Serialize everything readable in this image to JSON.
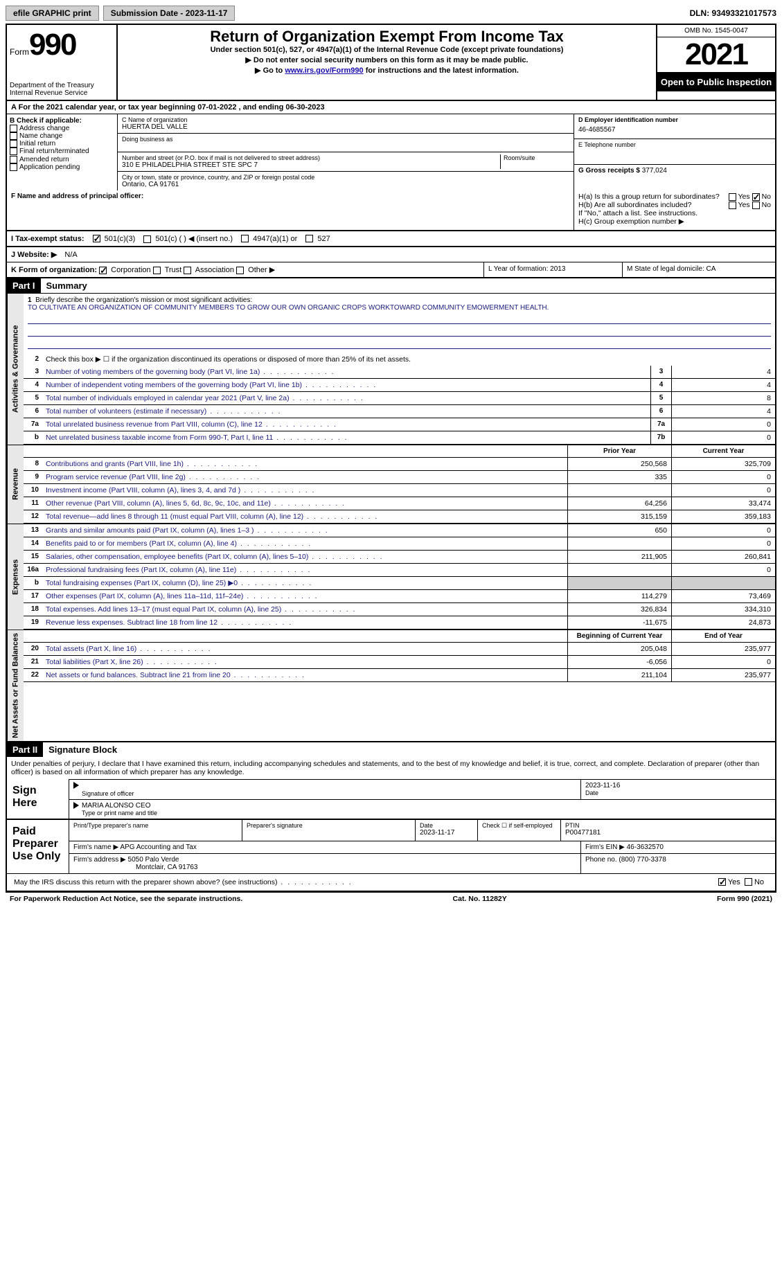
{
  "topbar": {
    "efile": "efile GRAPHIC print",
    "submission_label": "Submission Date - 2023-11-17",
    "dln": "DLN: 93493321017573"
  },
  "header": {
    "form_word": "Form",
    "form_num": "990",
    "dept": "Department of the Treasury Internal Revenue Service",
    "title": "Return of Organization Exempt From Income Tax",
    "sub": "Under section 501(c), 527, or 4947(a)(1) of the Internal Revenue Code (except private foundations)",
    "note1": "▶ Do not enter social security numbers on this form as it may be made public.",
    "note2_pre": "▶ Go to ",
    "note2_link": "www.irs.gov/Form990",
    "note2_post": " for instructions and the latest information.",
    "omb": "OMB No. 1545-0047",
    "year": "2021",
    "inspection": "Open to Public Inspection"
  },
  "period": "A For the 2021 calendar year, or tax year beginning 07-01-2022    , and ending 06-30-2023",
  "box_b": {
    "label": "B Check if applicable:",
    "items": [
      "Address change",
      "Name change",
      "Initial return",
      "Final return/terminated",
      "Amended return",
      "Application pending"
    ]
  },
  "box_c": {
    "name_label": "C Name of organization",
    "name": "HUERTA DEL VALLE",
    "dba_label": "Doing business as",
    "street_label": "Number and street (or P.O. box if mail is not delivered to street address)",
    "suite_label": "Room/suite",
    "street": "310 E PHILADELPHIA STREET STE SPC 7",
    "city_label": "City or town, state or province, country, and ZIP or foreign postal code",
    "city": "Ontario, CA  91761"
  },
  "box_d": {
    "ein_label": "D Employer identification number",
    "ein": "46-4685567",
    "phone_label": "E Telephone number",
    "gross_label": "G Gross receipts $ ",
    "gross": "377,024"
  },
  "box_f": {
    "label": "F  Name and address of principal officer:"
  },
  "box_h": {
    "ha": "H(a)  Is this a group return for subordinates?",
    "hb": "H(b)  Are all subordinates included?",
    "hb_note": "If \"No,\" attach a list. See instructions.",
    "hc": "H(c)  Group exemption number ▶",
    "yes": "Yes",
    "no": "No"
  },
  "tax_status": {
    "label": "I  Tax-exempt status:",
    "c3": "501(c)(3)",
    "c": "501(c) (   ) ◀ (insert no.)",
    "a1": "4947(a)(1) or",
    "s527": "527"
  },
  "website": {
    "label": "J  Website: ▶",
    "value": "N/A"
  },
  "form_org": {
    "label": "K Form of organization:",
    "corp": "Corporation",
    "trust": "Trust",
    "assoc": "Association",
    "other": "Other ▶",
    "year_label": "L Year of formation: ",
    "year": "2013",
    "state_label": "M State of legal domicile: ",
    "state": "CA"
  },
  "part1": {
    "hdr": "Part I",
    "title": "Summary",
    "side_activities": "Activities & Governance",
    "side_revenue": "Revenue",
    "side_expenses": "Expenses",
    "side_net": "Net Assets or Fund Balances",
    "line1_label": "Briefly describe the organization's mission or most significant activities:",
    "mission": "TO CULTIVATE AN ORGANIZATION OF COMMUNITY MEMBERS TO GROW OUR OWN ORGANIC CROPS WORKTOWARD COMMUNITY EMOWERMENT HEALTH.",
    "line2": "Check this box ▶ ☐  if the organization discontinued its operations or disposed of more than 25% of its net assets.",
    "lines_ag": [
      {
        "n": "3",
        "d": "Number of voting members of the governing body (Part VI, line 1a)",
        "b": "3",
        "v": "4"
      },
      {
        "n": "4",
        "d": "Number of independent voting members of the governing body (Part VI, line 1b)",
        "b": "4",
        "v": "4"
      },
      {
        "n": "5",
        "d": "Total number of individuals employed in calendar year 2021 (Part V, line 2a)",
        "b": "5",
        "v": "8"
      },
      {
        "n": "6",
        "d": "Total number of volunteers (estimate if necessary)",
        "b": "6",
        "v": "4"
      },
      {
        "n": "7a",
        "d": "Total unrelated business revenue from Part VIII, column (C), line 12",
        "b": "7a",
        "v": "0"
      },
      {
        "n": "b",
        "d": "Net unrelated business taxable income from Form 990-T, Part I, line 11",
        "b": "7b",
        "v": "0"
      }
    ],
    "col_prior": "Prior Year",
    "col_current": "Current Year",
    "lines_rev": [
      {
        "n": "8",
        "d": "Contributions and grants (Part VIII, line 1h)",
        "p": "250,568",
        "c": "325,709"
      },
      {
        "n": "9",
        "d": "Program service revenue (Part VIII, line 2g)",
        "p": "335",
        "c": "0"
      },
      {
        "n": "10",
        "d": "Investment income (Part VIII, column (A), lines 3, 4, and 7d )",
        "p": "",
        "c": "0"
      },
      {
        "n": "11",
        "d": "Other revenue (Part VIII, column (A), lines 5, 6d, 8c, 9c, 10c, and 11e)",
        "p": "64,256",
        "c": "33,474"
      },
      {
        "n": "12",
        "d": "Total revenue—add lines 8 through 11 (must equal Part VIII, column (A), line 12)",
        "p": "315,159",
        "c": "359,183"
      }
    ],
    "lines_exp": [
      {
        "n": "13",
        "d": "Grants and similar amounts paid (Part IX, column (A), lines 1–3 )",
        "p": "650",
        "c": "0"
      },
      {
        "n": "14",
        "d": "Benefits paid to or for members (Part IX, column (A), line 4)",
        "p": "",
        "c": "0"
      },
      {
        "n": "15",
        "d": "Salaries, other compensation, employee benefits (Part IX, column (A), lines 5–10)",
        "p": "211,905",
        "c": "260,841"
      },
      {
        "n": "16a",
        "d": "Professional fundraising fees (Part IX, column (A), line 11e)",
        "p": "",
        "c": "0"
      },
      {
        "n": "b",
        "d": "Total fundraising expenses (Part IX, column (D), line 25) ▶0",
        "p": "shade",
        "c": "shade"
      },
      {
        "n": "17",
        "d": "Other expenses (Part IX, column (A), lines 11a–11d, 11f–24e)",
        "p": "114,279",
        "c": "73,469"
      },
      {
        "n": "18",
        "d": "Total expenses. Add lines 13–17 (must equal Part IX, column (A), line 25)",
        "p": "326,834",
        "c": "334,310"
      },
      {
        "n": "19",
        "d": "Revenue less expenses. Subtract line 18 from line 12",
        "p": "-11,675",
        "c": "24,873"
      }
    ],
    "col_begin": "Beginning of Current Year",
    "col_end": "End of Year",
    "lines_net": [
      {
        "n": "20",
        "d": "Total assets (Part X, line 16)",
        "p": "205,048",
        "c": "235,977"
      },
      {
        "n": "21",
        "d": "Total liabilities (Part X, line 26)",
        "p": "-6,056",
        "c": "0"
      },
      {
        "n": "22",
        "d": "Net assets or fund balances. Subtract line 21 from line 20",
        "p": "211,104",
        "c": "235,977"
      }
    ]
  },
  "part2": {
    "hdr": "Part II",
    "title": "Signature Block",
    "decl": "Under penalties of perjury, I declare that I have examined this return, including accompanying schedules and statements, and to the best of my knowledge and belief, it is true, correct, and complete. Declaration of preparer (other than officer) is based on all information of which preparer has any knowledge.",
    "sign_here": "Sign Here",
    "sig_officer": "Signature of officer",
    "sig_date": "2023-11-16",
    "date_label": "Date",
    "officer_name": "MARIA ALONSO CEO",
    "type_name": "Type or print name and title",
    "paid_prep": "Paid Preparer Use Only",
    "print_name_label": "Print/Type preparer's name",
    "prep_sig_label": "Preparer's signature",
    "prep_date": "2023-11-17",
    "check_self": "Check ☐ if self-employed",
    "ptin_label": "PTIN",
    "ptin": "P00477181",
    "firm_name_label": "Firm's name    ▶ ",
    "firm_name": "APG Accounting and Tax",
    "firm_ein_label": "Firm's EIN ▶ ",
    "firm_ein": "46-3632570",
    "firm_addr_label": "Firm's address ▶ ",
    "firm_addr1": "5050 Palo Verde",
    "firm_addr2": "Montclair, CA  91763",
    "firm_phone_label": "Phone no. ",
    "firm_phone": "(800) 770-3378",
    "discuss": "May the IRS discuss this return with the preparer shown above? (see instructions)",
    "yes": "Yes",
    "no": "No"
  },
  "footer": {
    "pra": "For Paperwork Reduction Act Notice, see the separate instructions.",
    "cat": "Cat. No. 11282Y",
    "form": "Form 990 (2021)"
  }
}
